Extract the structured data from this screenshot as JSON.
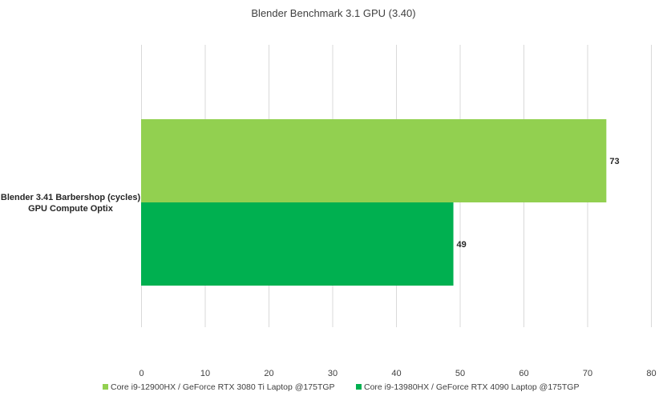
{
  "chart_data": {
    "type": "bar",
    "orientation": "horizontal",
    "title": "Blender Benchmark 3.1 GPU (3.40)",
    "categories": [
      "Blender 3.41 Barbershop (cycles) GPU Compute Optix"
    ],
    "category_lines": [
      "Blender 3.41 Barbershop (cycles)",
      "GPU Compute Optix"
    ],
    "series": [
      {
        "name": "Core i9-12900HX / GeForce RTX 3080 Ti Laptop @175TGP",
        "values": [
          73
        ],
        "color": "#92d050"
      },
      {
        "name": "Core i9-13980HX  / GeForce RTX 4090 Laptop @175TGP",
        "values": [
          49
        ],
        "color": "#00b050"
      }
    ],
    "data_labels": [
      "73",
      "49"
    ],
    "xlim": [
      0,
      80
    ],
    "xticks": [
      0,
      10,
      20,
      30,
      40,
      50,
      60,
      70,
      80
    ],
    "grid": true,
    "legend_position": "bottom",
    "xlabel": "",
    "ylabel": ""
  }
}
